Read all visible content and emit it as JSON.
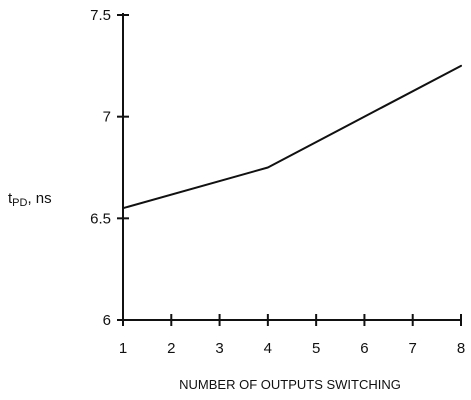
{
  "chart_data": {
    "type": "line",
    "x": [
      1,
      4,
      8
    ],
    "series": [
      {
        "values": [
          6.55,
          6.75,
          7.25
        ]
      }
    ],
    "xlabel": "NUMBER OF OUTPUTS SWITCHING",
    "ylabel": {
      "main": "t",
      "sub": "PD",
      "unit": ", ns"
    },
    "xlim": [
      1,
      8
    ],
    "ylim": [
      6,
      7.5
    ],
    "xticks": [
      "1",
      "2",
      "3",
      "4",
      "5",
      "6",
      "7",
      "8"
    ],
    "yticks": [
      "6",
      "6.5",
      "7",
      "7.5"
    ],
    "grid": false,
    "colors": {
      "line": "#111111",
      "axis": "#111111"
    }
  }
}
